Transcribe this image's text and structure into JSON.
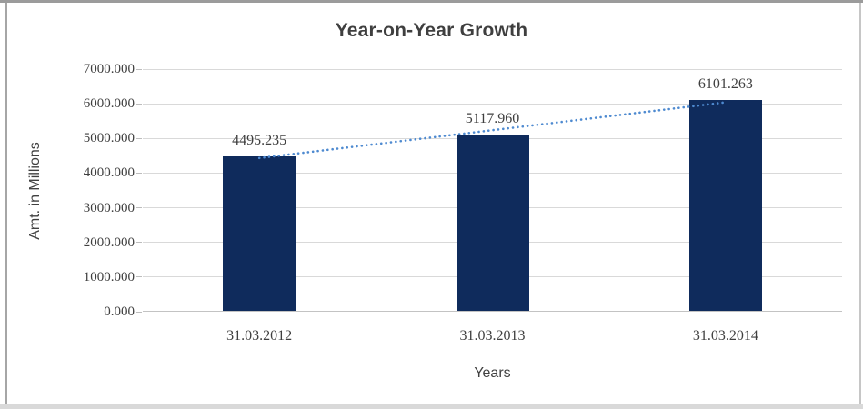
{
  "chart_data": {
    "type": "bar",
    "title": "Year-on-Year Growth",
    "categories": [
      "31.03.2012",
      "31.03.2013",
      "31.03.2014"
    ],
    "values": [
      4495.235,
      5117.96,
      6101.263
    ],
    "data_labels": [
      "4495.235",
      "5117.960",
      "6101.263"
    ],
    "xlabel": "Years",
    "ylabel": "Amt. in Millions",
    "ylim": [
      0,
      7000
    ],
    "ytick_step": 1000,
    "ytick_decimals": 3,
    "grid": true,
    "legend": "none",
    "bar_color": "#0f2b5c",
    "gridline_color": "#d9d9d9",
    "trendline": {
      "type": "linear",
      "style": "dotted",
      "color": "#4e8ad0"
    }
  }
}
